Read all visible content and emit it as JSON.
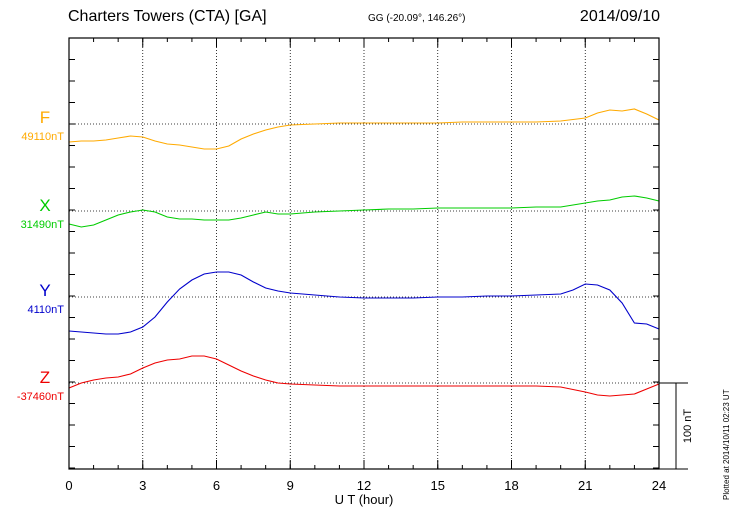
{
  "header": {
    "station": "Charters Towers (CTA)  [GA]",
    "coords": "GG (-20.09°, 146.26°)",
    "date": "2014/09/10"
  },
  "plotted_note": "Plotted at 2014/10/11 02:23 UT",
  "chart_data": {
    "type": "line",
    "xlabel": "U T (hour)",
    "xlim": [
      0,
      24
    ],
    "x_ticks": [
      "0",
      "3",
      "6",
      "9",
      "12",
      "15",
      "18",
      "21",
      "24"
    ],
    "scale_bar_label": "100 nT",
    "series": [
      {
        "name": "F",
        "baseline_label": "49110nT",
        "color": "#ffaa00",
        "points": [
          [
            0,
            18
          ],
          [
            0.5,
            17
          ],
          [
            1,
            17
          ],
          [
            1.5,
            16
          ],
          [
            2,
            14
          ],
          [
            2.5,
            12
          ],
          [
            3,
            13
          ],
          [
            3.5,
            17
          ],
          [
            4,
            20
          ],
          [
            4.5,
            21
          ],
          [
            5,
            23
          ],
          [
            5.5,
            25
          ],
          [
            6,
            25
          ],
          [
            6.5,
            22
          ],
          [
            7,
            15
          ],
          [
            7.5,
            10
          ],
          [
            8,
            6
          ],
          [
            8.5,
            3
          ],
          [
            9,
            1
          ],
          [
            10,
            0
          ],
          [
            11,
            -1
          ],
          [
            12,
            -1
          ],
          [
            13,
            -1
          ],
          [
            14,
            -1
          ],
          [
            15,
            -1
          ],
          [
            16,
            -2
          ],
          [
            17,
            -2
          ],
          [
            18,
            -2
          ],
          [
            19,
            -2
          ],
          [
            20,
            -3
          ],
          [
            21,
            -6
          ],
          [
            21.5,
            -11
          ],
          [
            22,
            -14
          ],
          [
            22.5,
            -13
          ],
          [
            23,
            -15
          ],
          [
            23.5,
            -10
          ],
          [
            24,
            -4
          ]
        ]
      },
      {
        "name": "X",
        "baseline_label": "31490nT",
        "color": "#00cc00",
        "points": [
          [
            0,
            13
          ],
          [
            0.5,
            16
          ],
          [
            1,
            14
          ],
          [
            1.5,
            9
          ],
          [
            2,
            4
          ],
          [
            2.5,
            1
          ],
          [
            3,
            -1
          ],
          [
            3.5,
            1
          ],
          [
            4,
            6
          ],
          [
            4.5,
            8
          ],
          [
            5,
            8
          ],
          [
            5.5,
            9
          ],
          [
            6,
            9
          ],
          [
            6.5,
            9
          ],
          [
            7,
            7
          ],
          [
            7.5,
            4
          ],
          [
            8,
            1
          ],
          [
            8.5,
            3
          ],
          [
            9,
            3
          ],
          [
            10,
            1
          ],
          [
            11,
            0
          ],
          [
            12,
            -1
          ],
          [
            13,
            -2
          ],
          [
            14,
            -2
          ],
          [
            15,
            -3
          ],
          [
            16,
            -3
          ],
          [
            17,
            -3
          ],
          [
            18,
            -3
          ],
          [
            19,
            -4
          ],
          [
            20,
            -4
          ],
          [
            21,
            -8
          ],
          [
            21.5,
            -10
          ],
          [
            22,
            -11
          ],
          [
            22.5,
            -14
          ],
          [
            23,
            -15
          ],
          [
            23.5,
            -13
          ],
          [
            24,
            -10
          ]
        ]
      },
      {
        "name": "Y",
        "baseline_label": "4110nT",
        "color": "#0000cc",
        "points": [
          [
            0,
            34
          ],
          [
            0.5,
            35
          ],
          [
            1,
            36
          ],
          [
            1.5,
            37
          ],
          [
            2,
            37
          ],
          [
            2.5,
            35
          ],
          [
            3,
            30
          ],
          [
            3.5,
            20
          ],
          [
            4,
            5
          ],
          [
            4.5,
            -8
          ],
          [
            5,
            -17
          ],
          [
            5.5,
            -23
          ],
          [
            6,
            -25
          ],
          [
            6.5,
            -25
          ],
          [
            7,
            -22
          ],
          [
            7.5,
            -15
          ],
          [
            8,
            -9
          ],
          [
            8.5,
            -6
          ],
          [
            9,
            -4
          ],
          [
            10,
            -2
          ],
          [
            11,
            0
          ],
          [
            12,
            1
          ],
          [
            13,
            1
          ],
          [
            14,
            1
          ],
          [
            15,
            0
          ],
          [
            16,
            0
          ],
          [
            17,
            -1
          ],
          [
            18,
            -1
          ],
          [
            19,
            -2
          ],
          [
            20,
            -3
          ],
          [
            20.5,
            -7
          ],
          [
            21,
            -13
          ],
          [
            21.5,
            -12
          ],
          [
            22,
            -7
          ],
          [
            22.5,
            6
          ],
          [
            23,
            26
          ],
          [
            23.5,
            27
          ],
          [
            24,
            32
          ]
        ]
      },
      {
        "name": "Z",
        "baseline_label": "-37460nT",
        "color": "#ee0000",
        "points": [
          [
            0,
            5
          ],
          [
            0.5,
            0
          ],
          [
            1,
            -3
          ],
          [
            1.5,
            -5
          ],
          [
            2,
            -6
          ],
          [
            2.5,
            -9
          ],
          [
            3,
            -15
          ],
          [
            3.5,
            -20
          ],
          [
            4,
            -23
          ],
          [
            4.5,
            -24
          ],
          [
            5,
            -27
          ],
          [
            5.5,
            -27
          ],
          [
            6,
            -24
          ],
          [
            6.5,
            -18
          ],
          [
            7,
            -12
          ],
          [
            7.5,
            -7
          ],
          [
            8,
            -3
          ],
          [
            8.5,
            0
          ],
          [
            9,
            1
          ],
          [
            10,
            2
          ],
          [
            11,
            3
          ],
          [
            12,
            3
          ],
          [
            13,
            3
          ],
          [
            14,
            3
          ],
          [
            15,
            3
          ],
          [
            16,
            3
          ],
          [
            17,
            3
          ],
          [
            18,
            3
          ],
          [
            19,
            3
          ],
          [
            20,
            4
          ],
          [
            21,
            9
          ],
          [
            21.5,
            12
          ],
          [
            22,
            13
          ],
          [
            22.5,
            12
          ],
          [
            23,
            11
          ],
          [
            23.5,
            6
          ],
          [
            24,
            1
          ]
        ]
      }
    ]
  }
}
